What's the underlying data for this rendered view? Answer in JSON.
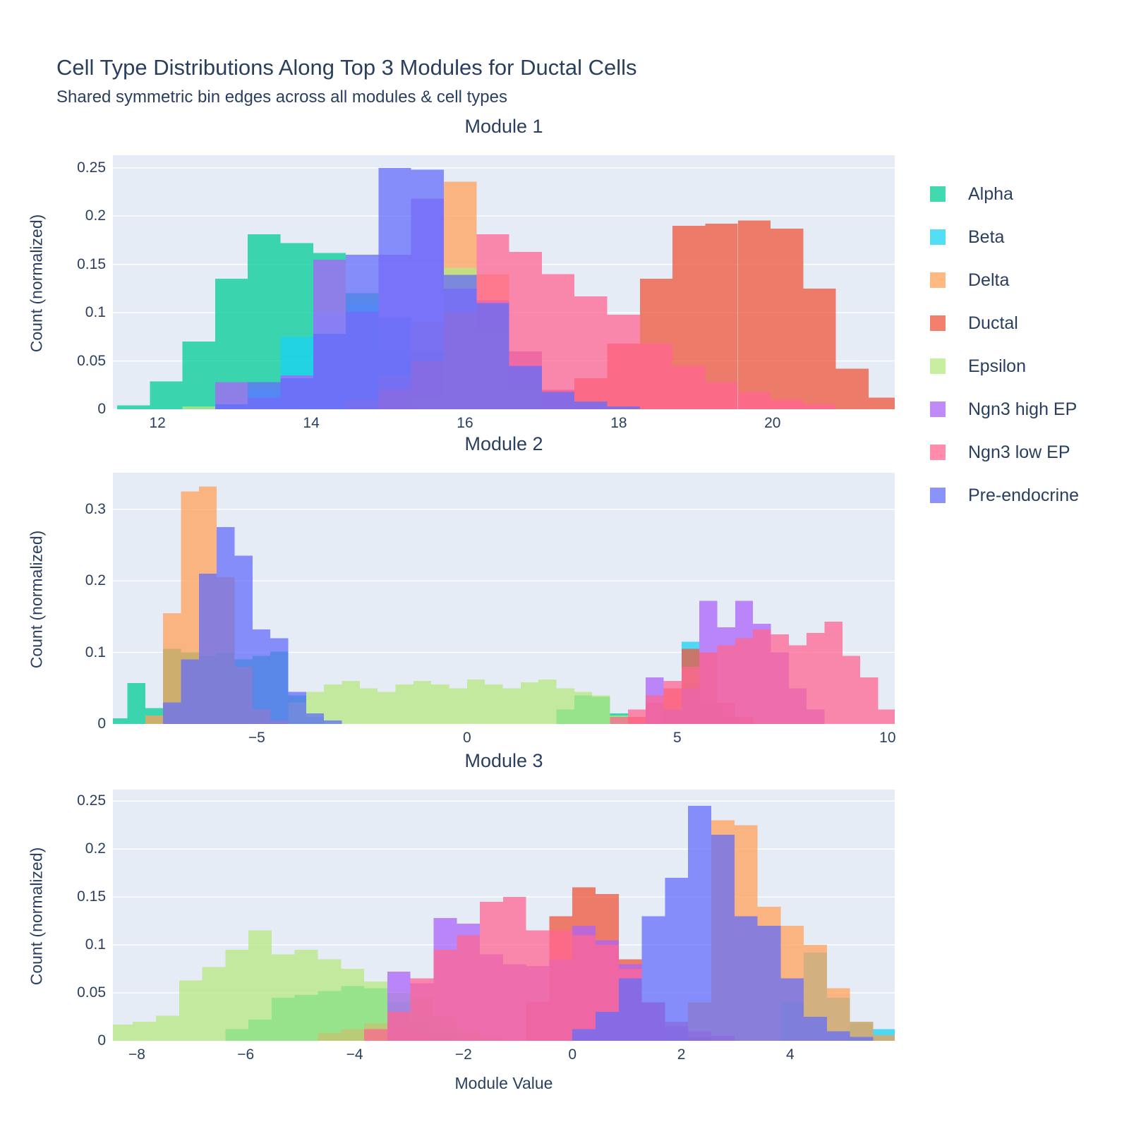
{
  "title": "Cell Type Distributions Along Top 3 Modules for Ductal Cells",
  "subtitle": "Shared symmetric bin edges across all modules & cell types",
  "axis": {
    "x_label": "Module Value",
    "y_label": "Count (normalized)"
  },
  "colors": {
    "text": "#2a3f5f",
    "plot_bg": "#E5ECF6",
    "gridline": "#ffffff"
  },
  "chart_data": {
    "type": "bar",
    "subtype": "overlaid-histograms",
    "bin_width": 0.425,
    "bar_opacity": 0.75,
    "legend_position": "right",
    "grid": "horizontal-white",
    "legend": [
      {
        "label": "Alpha",
        "color": "#00CC96"
      },
      {
        "label": "Beta",
        "color": "#19D3F3"
      },
      {
        "label": "Delta",
        "color": "#FFA15A"
      },
      {
        "label": "Ductal",
        "color": "#EF553B"
      },
      {
        "label": "Epsilon",
        "color": "#B6E880"
      },
      {
        "label": "Ngn3 high EP",
        "color": "#AB63FA"
      },
      {
        "label": "Ngn3 low EP",
        "color": "#FF6692"
      },
      {
        "label": "Pre-endocrine",
        "color": "#636EFA"
      }
    ],
    "modules": [
      {
        "title": "Module 1",
        "x_range": [
          11.42,
          21.59
        ],
        "x_ticks": [
          12,
          14,
          16,
          18,
          20
        ],
        "y_range": [
          0,
          0.263
        ],
        "y_ticks": [
          0,
          0.05,
          0.1,
          0.15,
          0.2,
          0.25
        ],
        "series": [
          {
            "name": "Alpha",
            "color": "#00CC96",
            "segments": [
              {
                "x0": 11.475,
                "h": [
                  0.004,
                  0.029,
                  0.07,
                  0.135,
                  0.181,
                  0.172,
                  0.162,
                  0.12,
                  0.06,
                  0.025,
                  0.008
                ]
              }
            ]
          },
          {
            "name": "Beta",
            "color": "#19D3F3",
            "segments": [
              {
                "x0": 12.75,
                "h": [
                  0.006,
                  0.02,
                  0.075,
                  0.1,
                  0.11,
                  0.095,
                  0.06,
                  0.028,
                  0.01
                ]
              }
            ]
          },
          {
            "name": "Delta",
            "color": "#FFA15A",
            "segments": [
              {
                "x0": 14.45,
                "h": [
                  0.01,
                  0.035,
                  0.09,
                  0.2355,
                  0.14,
                  0.06,
                  0.02,
                  0.006
                ]
              }
            ]
          },
          {
            "name": "Ductal",
            "color": "#EF553B",
            "segments": [
              {
                "x0": 16.575,
                "h": [
                  0.012,
                  0.02,
                  0.032,
                  0.068,
                  0.135,
                  0.19,
                  0.192,
                  0.1955,
                  0.187,
                  0.125,
                  0.042,
                  0.012,
                  0.004
                ]
              }
            ]
          },
          {
            "name": "Epsilon",
            "color": "#B6E880",
            "segments": [
              {
                "x0": 12.325,
                "h": [
                  0.003
                ]
              },
              {
                "x0": 15.3,
                "h": [
                  0.012,
                  0.1465,
                  0.08,
                  0.02
                ]
              }
            ]
          },
          {
            "name": "Ngn3 high EP",
            "color": "#AB63FA",
            "segments": [
              {
                "x0": 12.75,
                "h": [
                  0.028,
                  0.012,
                  0.035,
                  0.155,
                  0.101,
                  0.16,
                  0.218,
                  0.125,
                  0.113,
                  0.06,
                  0.02,
                  0.006
                ]
              }
            ]
          },
          {
            "name": "Ngn3 low EP",
            "color": "#FF6692",
            "segments": [
              {
                "x0": 14.875,
                "h": [
                  0.02,
                  0.05,
                  0.1,
                  0.181,
                  0.163,
                  0.14,
                  0.117,
                  0.098,
                  0.068,
                  0.045,
                  0.028,
                  0.018,
                  0.01,
                  0.005
                ]
              }
            ]
          },
          {
            "name": "Pre-endocrine",
            "color": "#636EFA",
            "segments": [
              {
                "x0": 12.75,
                "h": [
                  0.005,
                  0.028,
                  0.032,
                  0.078,
                  0.16,
                  0.25,
                  0.248,
                  0.139,
                  0.11,
                  0.045,
                  0.018,
                  0.008,
                  0.003
                ]
              }
            ]
          }
        ]
      },
      {
        "title": "Module 2",
        "x_range": [
          -8.42,
          10.17
        ],
        "x_ticks": [
          -5,
          0,
          5,
          10
        ],
        "y_range": [
          0,
          0.351
        ],
        "y_ticks": [
          0,
          0.1,
          0.2,
          0.3
        ],
        "series": [
          {
            "name": "Alpha",
            "color": "#00CC96",
            "segments": [
              {
                "x0": -8.5,
                "h": [
                  0.008,
                  0.057,
                  0.022,
                  0.105,
                  0.1,
                  0.095,
                  0.1,
                  0.09,
                  0.095,
                  0.101,
                  0.04,
                  0.01
                ]
              },
              {
                "x0": 2.125,
                "h": [
                  0.02,
                  0.04,
                  0.038,
                  0.015
                ]
              }
            ]
          },
          {
            "name": "Beta",
            "color": "#19D3F3",
            "segments": [
              {
                "x0": 4.675,
                "h": [
                  0.02,
                  0.115,
                  0.03,
                  0.01
                ]
              }
            ]
          },
          {
            "name": "Delta",
            "color": "#FFA15A",
            "segments": [
              {
                "x0": -7.65,
                "h": [
                  0.012,
                  0.155,
                  0.325,
                  0.332,
                  0.205,
                  0.08,
                  0.02,
                  0.005
                ]
              }
            ]
          },
          {
            "name": "Ductal",
            "color": "#EF553B",
            "segments": [
              {
                "x0": 3.825,
                "h": [
                  0.01,
                  0.03,
                  0.05,
                  0.105,
                  0.1,
                  0.03,
                  0.01
                ]
              }
            ]
          },
          {
            "name": "Epsilon",
            "color": "#B6E880",
            "segments": [
              {
                "x0": -4.25,
                "h": [
                  0.03,
                  0.045,
                  0.055,
                  0.06,
                  0.05,
                  0.045,
                  0.055,
                  0.06,
                  0.055,
                  0.05,
                  0.062,
                  0.055,
                  0.05,
                  0.058,
                  0.062,
                  0.05,
                  0.045,
                  0.04,
                  0.012
                ]
              }
            ]
          },
          {
            "name": "Ngn3 high EP",
            "color": "#AB63FA",
            "segments": [
              {
                "x0": 4.25,
                "h": [
                  0.065,
                  0.02,
                  0.05,
                  0.172,
                  0.135,
                  0.172,
                  0.14,
                  0.1,
                  0.05,
                  0.02
                ]
              }
            ]
          },
          {
            "name": "Ngn3 low EP",
            "color": "#FF6692",
            "segments": [
              {
                "x0": 3.4,
                "h": [
                  0.01,
                  0.02,
                  0.04,
                  0.06,
                  0.08,
                  0.1,
                  0.11,
                  0.12,
                  0.132,
                  0.125,
                  0.11,
                  0.127,
                  0.143,
                  0.095,
                  0.065,
                  0.02,
                  0.008
                ]
              }
            ]
          },
          {
            "name": "Pre-endocrine",
            "color": "#636EFA",
            "segments": [
              {
                "x0": -7.225,
                "h": [
                  0.03,
                  0.09,
                  0.21,
                  0.275,
                  0.235,
                  0.132,
                  0.12,
                  0.045,
                  0.015,
                  0.005
                ]
              }
            ]
          }
        ]
      },
      {
        "title": "Module 3",
        "x_range": [
          -8.44,
          5.92
        ],
        "x_ticks": [
          -8,
          -6,
          -4,
          -2,
          0,
          2,
          4
        ],
        "y_range": [
          0,
          0.262
        ],
        "y_ticks": [
          0,
          0.05,
          0.1,
          0.15,
          0.2,
          0.25
        ],
        "series": [
          {
            "name": "Alpha",
            "color": "#00CC96",
            "segments": [
              {
                "x0": -6.375,
                "h": [
                  0.012,
                  0.022,
                  0.045,
                  0.048,
                  0.052,
                  0.057,
                  0.055,
                  0.04,
                  0.02,
                  0.01
                ]
              },
              {
                "x0": 5.1,
                "h": [
                  0.018,
                  0.006
                ]
              }
            ]
          },
          {
            "name": "Beta",
            "color": "#19D3F3",
            "segments": [
              {
                "x0": 3.825,
                "h": [
                  0.04,
                  0.092,
                  0.045,
                  0.02,
                  0.012,
                  0.005
                ]
              }
            ]
          },
          {
            "name": "Delta",
            "color": "#FFA15A",
            "segments": [
              {
                "x0": 2.125,
                "h": [
                  0.04,
                  0.23,
                  0.225,
                  0.14,
                  0.12,
                  0.1,
                  0.055,
                  0.02,
                  0.006
                ]
              }
            ]
          },
          {
            "name": "Ductal",
            "color": "#EF553B",
            "segments": [
              {
                "x0": -4.675,
                "h": [
                  0.008,
                  0.012,
                  0.018,
                  0.012,
                  0.006
                ]
              },
              {
                "x0": -0.85,
                "h": [
                  0.04,
                  0.13,
                  0.16,
                  0.153,
                  0.085,
                  0.04,
                  0.012,
                  0.004
                ]
              }
            ]
          },
          {
            "name": "Epsilon",
            "color": "#B6E880",
            "segments": [
              {
                "x0": -8.5,
                "h": [
                  0.017,
                  0.02,
                  0.026,
                  0.063,
                  0.077,
                  0.095,
                  0.115,
                  0.09,
                  0.095,
                  0.085,
                  0.075,
                  0.062,
                  0.05,
                  0.045,
                  0.025,
                  0.012,
                  0.004
                ]
              }
            ]
          },
          {
            "name": "Ngn3 high EP",
            "color": "#AB63FA",
            "segments": [
              {
                "x0": -3.4,
                "h": [
                  0.072,
                  0.06,
                  0.128,
                  0.122,
                  0.09,
                  0.08,
                  0.078,
                  0.085,
                  0.12,
                  0.105,
                  0.08,
                  0.04,
                  0.015
                ]
              }
            ]
          },
          {
            "name": "Ngn3 low EP",
            "color": "#FF6692",
            "segments": [
              {
                "x0": -3.825,
                "h": [
                  0.012,
                  0.03,
                  0.065,
                  0.095,
                  0.11,
                  0.145,
                  0.15,
                  0.115,
                  0.115,
                  0.11,
                  0.1,
                  0.075,
                  0.04,
                  0.02,
                  0.01,
                  0.005
                ]
              }
            ]
          },
          {
            "name": "Pre-endocrine",
            "color": "#636EFA",
            "segments": [
              {
                "x0": 0,
                "h": [
                  0.012,
                  0.03,
                  0.065,
                  0.13,
                  0.17,
                  0.245,
                  0.215,
                  0.13,
                  0.12,
                  0.065,
                  0.025,
                  0.01,
                  0.004
                ]
              }
            ]
          }
        ]
      }
    ]
  }
}
